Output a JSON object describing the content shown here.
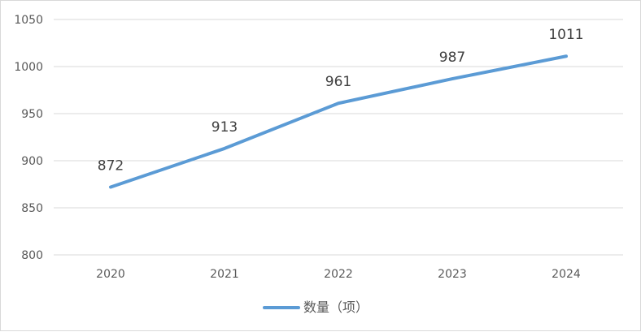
{
  "chart_data": {
    "type": "line",
    "title": "",
    "xlabel": "",
    "ylabel": "",
    "categories": [
      "2020",
      "2021",
      "2022",
      "2023",
      "2024"
    ],
    "series": [
      {
        "name": "数量（项）",
        "values": [
          872,
          913,
          961,
          987,
          1011
        ],
        "color": "#5b9bd5"
      }
    ],
    "data_labels": [
      "872",
      "913",
      "961",
      "987",
      "1011"
    ],
    "y_ticks": [
      "800",
      "850",
      "900",
      "950",
      "1000",
      "1050"
    ],
    "ylim": [
      800,
      1050
    ],
    "grid": true,
    "legend_position": "bottom"
  }
}
